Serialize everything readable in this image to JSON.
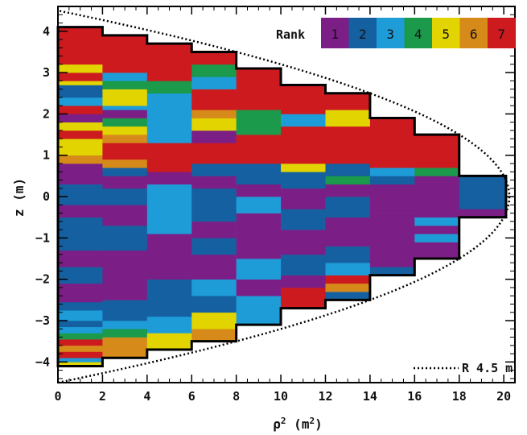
{
  "chart_data": {
    "type": "heatmap",
    "title": "",
    "xlabel": "ρ² (m²)",
    "ylabel": "z (m)",
    "xlim": [
      0,
      20.5
    ],
    "ylim": [
      -4.5,
      4.6
    ],
    "x_ticks": [
      0,
      2,
      4,
      6,
      8,
      10,
      12,
      14,
      16,
      18,
      20
    ],
    "y_ticks": [
      -4,
      -3,
      -2,
      -1,
      0,
      1,
      2,
      3,
      4
    ],
    "legend": {
      "title": "Rank",
      "entries": [
        {
          "label": "1",
          "color": "#7b1f86"
        },
        {
          "label": "2",
          "color": "#1560a0"
        },
        {
          "label": "3",
          "color": "#1e9cd8"
        },
        {
          "label": "4",
          "color": "#1a9a4a"
        },
        {
          "label": "5",
          "color": "#e2d400"
        },
        {
          "label": "6",
          "color": "#d58a1a"
        },
        {
          "label": "7",
          "color": "#cc1a1f"
        }
      ],
      "placement": "top-right"
    },
    "annotation": "R 4.5 m",
    "reference_curve": {
      "name": "R 4.5 m",
      "radius": 4.5,
      "style": "dotted"
    },
    "columns": [
      {
        "x": [
          0,
          2
        ],
        "zmax": 4.1,
        "segments": [
          [
            -4.1,
            -4.0,
            5
          ],
          [
            -4.0,
            -3.9,
            3
          ],
          [
            -3.9,
            -3.75,
            7
          ],
          [
            -3.75,
            -3.6,
            6
          ],
          [
            -3.6,
            -3.45,
            7
          ],
          [
            -3.45,
            -3.3,
            4
          ],
          [
            -3.3,
            -3.15,
            3
          ],
          [
            -3.15,
            -3.0,
            2
          ],
          [
            -3.0,
            -2.75,
            3
          ],
          [
            -2.75,
            -2.55,
            2
          ],
          [
            -2.55,
            -2.1,
            1
          ],
          [
            -2.1,
            -1.7,
            2
          ],
          [
            -1.7,
            -1.3,
            1
          ],
          [
            -1.3,
            -0.5,
            2
          ],
          [
            -0.5,
            -0.2,
            1
          ],
          [
            -0.2,
            0.3,
            2
          ],
          [
            0.3,
            0.8,
            1
          ],
          [
            0.8,
            1.0,
            6
          ],
          [
            1.0,
            1.4,
            5
          ],
          [
            1.4,
            1.6,
            7
          ],
          [
            1.6,
            1.8,
            5
          ],
          [
            1.8,
            2.0,
            1
          ],
          [
            2.0,
            2.2,
            7
          ],
          [
            2.2,
            2.4,
            3
          ],
          [
            2.4,
            2.7,
            2
          ],
          [
            2.7,
            2.8,
            5
          ],
          [
            2.8,
            3.0,
            7
          ],
          [
            3.0,
            3.2,
            5
          ],
          [
            3.2,
            4.1,
            7
          ]
        ]
      },
      {
        "x": [
          2,
          4
        ],
        "zmax": 3.9,
        "segments": [
          [
            -3.9,
            -3.7,
            6
          ],
          [
            -3.7,
            -3.4,
            6
          ],
          [
            -3.4,
            -3.2,
            4
          ],
          [
            -3.2,
            -3.0,
            3
          ],
          [
            -3.0,
            -2.5,
            2
          ],
          [
            -2.5,
            -2.2,
            1
          ],
          [
            -2.2,
            -1.7,
            1
          ],
          [
            -1.7,
            -1.3,
            1
          ],
          [
            -1.3,
            -0.7,
            2
          ],
          [
            -0.7,
            -0.2,
            1
          ],
          [
            -0.2,
            0.2,
            2
          ],
          [
            0.2,
            0.5,
            1
          ],
          [
            0.5,
            0.7,
            2
          ],
          [
            0.7,
            0.9,
            6
          ],
          [
            0.9,
            1.3,
            7
          ],
          [
            1.3,
            1.5,
            6
          ],
          [
            1.5,
            1.7,
            5
          ],
          [
            1.7,
            1.9,
            4
          ],
          [
            1.9,
            2.1,
            1
          ],
          [
            2.1,
            2.2,
            3
          ],
          [
            2.2,
            2.6,
            5
          ],
          [
            2.6,
            2.8,
            4
          ],
          [
            2.8,
            3.0,
            3
          ],
          [
            3.0,
            3.9,
            7
          ]
        ]
      },
      {
        "x": [
          4,
          6
        ],
        "zmax": 3.7,
        "segments": [
          [
            -3.7,
            -3.3,
            5
          ],
          [
            -3.3,
            -2.9,
            3
          ],
          [
            -2.9,
            -2.6,
            2
          ],
          [
            -2.6,
            -2.0,
            2
          ],
          [
            -2.0,
            -1.3,
            1
          ],
          [
            -1.3,
            -0.9,
            1
          ],
          [
            -0.9,
            -0.4,
            3
          ],
          [
            -0.4,
            0.3,
            3
          ],
          [
            0.3,
            0.6,
            1
          ],
          [
            0.6,
            1.3,
            7
          ],
          [
            1.3,
            2.5,
            3
          ],
          [
            2.5,
            2.8,
            4
          ],
          [
            2.8,
            3.7,
            7
          ]
        ]
      },
      {
        "x": [
          6,
          8
        ],
        "zmax": 3.5,
        "segments": [
          [
            -3.5,
            -3.2,
            6
          ],
          [
            -3.2,
            -2.8,
            5
          ],
          [
            -2.8,
            -2.4,
            2
          ],
          [
            -2.4,
            -2.0,
            3
          ],
          [
            -2.0,
            -1.4,
            1
          ],
          [
            -1.4,
            -1.0,
            2
          ],
          [
            -1.0,
            -0.6,
            1
          ],
          [
            -0.6,
            0.2,
            2
          ],
          [
            0.2,
            0.5,
            1
          ],
          [
            0.5,
            0.8,
            2
          ],
          [
            0.8,
            1.3,
            7
          ],
          [
            1.3,
            1.6,
            1
          ],
          [
            1.6,
            1.9,
            5
          ],
          [
            1.9,
            2.1,
            6
          ],
          [
            2.1,
            2.6,
            7
          ],
          [
            2.6,
            2.9,
            3
          ],
          [
            2.9,
            3.2,
            4
          ],
          [
            3.2,
            3.5,
            7
          ]
        ]
      },
      {
        "x": [
          8,
          10
        ],
        "zmax": 3.1,
        "segments": [
          [
            -3.1,
            -2.8,
            3
          ],
          [
            -2.8,
            -2.4,
            3
          ],
          [
            -2.4,
            -2.0,
            1
          ],
          [
            -2.0,
            -1.5,
            3
          ],
          [
            -1.5,
            -1.0,
            1
          ],
          [
            -1.0,
            -0.4,
            1
          ],
          [
            -0.4,
            0.0,
            3
          ],
          [
            0.0,
            0.3,
            1
          ],
          [
            0.3,
            0.8,
            2
          ],
          [
            0.8,
            1.5,
            7
          ],
          [
            1.5,
            2.1,
            4
          ],
          [
            2.1,
            2.6,
            7
          ],
          [
            2.6,
            3.1,
            7
          ]
        ]
      },
      {
        "x": [
          10,
          12
        ],
        "zmax": 2.7,
        "segments": [
          [
            -2.7,
            -2.5,
            7
          ],
          [
            -2.5,
            -2.2,
            7
          ],
          [
            -2.2,
            -1.9,
            1
          ],
          [
            -1.9,
            -1.4,
            2
          ],
          [
            -1.4,
            -0.8,
            1
          ],
          [
            -0.8,
            -0.3,
            2
          ],
          [
            -0.3,
            0.2,
            1
          ],
          [
            0.2,
            0.6,
            2
          ],
          [
            0.6,
            0.8,
            5
          ],
          [
            0.8,
            1.7,
            7
          ],
          [
            1.7,
            2.0,
            3
          ],
          [
            2.0,
            2.7,
            7
          ]
        ]
      },
      {
        "x": [
          12,
          14
        ],
        "zmax": 2.5,
        "segments": [
          [
            -2.5,
            -2.3,
            2
          ],
          [
            -2.3,
            -2.1,
            6
          ],
          [
            -2.1,
            -1.9,
            7
          ],
          [
            -1.9,
            -1.6,
            3
          ],
          [
            -1.6,
            -1.2,
            2
          ],
          [
            -1.2,
            -0.5,
            1
          ],
          [
            -0.5,
            0.0,
            2
          ],
          [
            0.0,
            0.3,
            1
          ],
          [
            0.3,
            0.5,
            4
          ],
          [
            0.5,
            0.8,
            2
          ],
          [
            0.8,
            1.7,
            7
          ],
          [
            1.7,
            2.1,
            5
          ],
          [
            2.1,
            2.5,
            7
          ]
        ]
      },
      {
        "x": [
          14,
          16
        ],
        "zmax": 1.9,
        "segments": [
          [
            -1.9,
            -1.7,
            2
          ],
          [
            -1.7,
            -1.3,
            1
          ],
          [
            -1.3,
            -0.4,
            1
          ],
          [
            -0.4,
            0.3,
            1
          ],
          [
            0.3,
            0.5,
            2
          ],
          [
            0.5,
            0.7,
            3
          ],
          [
            0.7,
            1.9,
            7
          ]
        ]
      },
      {
        "x": [
          16,
          18
        ],
        "zmax": 1.5,
        "segments": [
          [
            -1.5,
            -1.1,
            1
          ],
          [
            -1.1,
            -0.9,
            3
          ],
          [
            -0.9,
            -0.7,
            1
          ],
          [
            -0.7,
            -0.5,
            3
          ],
          [
            -0.5,
            0.5,
            1
          ],
          [
            0.5,
            0.7,
            4
          ],
          [
            0.7,
            1.5,
            7
          ]
        ]
      },
      {
        "x": [
          18,
          20.1
        ],
        "zmax": 0.5,
        "segments": [
          [
            -0.5,
            -0.3,
            1
          ],
          [
            -0.3,
            0.5,
            2
          ]
        ]
      }
    ]
  }
}
